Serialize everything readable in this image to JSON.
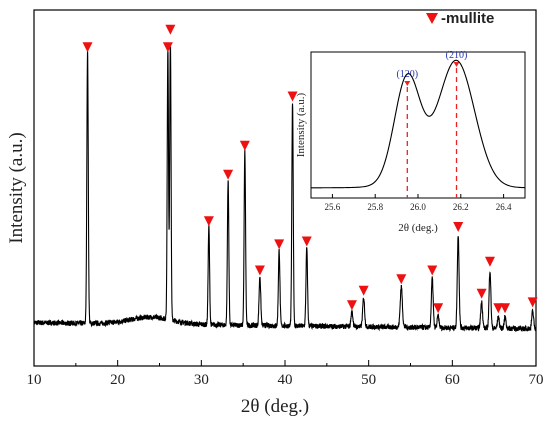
{
  "chart_data": [
    {
      "type": "line",
      "title": "",
      "xlabel": "2θ (deg.)",
      "ylabel": "Intensity (a.u.)",
      "xlim": [
        10,
        70
      ],
      "x_ticks": [
        "10",
        "20",
        "30",
        "40",
        "50",
        "60",
        "70"
      ],
      "y_ticks": [],
      "grid": false,
      "colors": {
        "line": "#000000",
        "marker": "#ee1111"
      },
      "legend": {
        "entries": [
          "-mullite"
        ],
        "placement": "top-right",
        "marker": "red-down-triangle"
      },
      "background": 0.07,
      "peaks": [
        {
          "x": 16.4,
          "y": 0.94,
          "w": 0.12,
          "marked": true
        },
        {
          "x": 26.0,
          "y": 0.94,
          "w": 0.11,
          "marked": true
        },
        {
          "x": 26.3,
          "y": 1.0,
          "w": 0.11,
          "marked": true
        },
        {
          "x": 30.9,
          "y": 0.34,
          "w": 0.12,
          "marked": true
        },
        {
          "x": 33.2,
          "y": 0.5,
          "w": 0.12,
          "marked": true
        },
        {
          "x": 35.2,
          "y": 0.6,
          "w": 0.12,
          "marked": true
        },
        {
          "x": 37.0,
          "y": 0.17,
          "w": 0.14,
          "marked": true
        },
        {
          "x": 39.3,
          "y": 0.26,
          "w": 0.13,
          "marked": true
        },
        {
          "x": 40.9,
          "y": 0.77,
          "w": 0.12,
          "marked": true
        },
        {
          "x": 42.6,
          "y": 0.27,
          "w": 0.13,
          "marked": true
        },
        {
          "x": 48.0,
          "y": 0.05,
          "w": 0.16,
          "marked": true
        },
        {
          "x": 49.4,
          "y": 0.1,
          "w": 0.16,
          "marked": true
        },
        {
          "x": 53.9,
          "y": 0.14,
          "w": 0.18,
          "marked": true
        },
        {
          "x": 57.6,
          "y": 0.17,
          "w": 0.15,
          "marked": true
        },
        {
          "x": 58.3,
          "y": 0.04,
          "w": 0.15,
          "marked": true
        },
        {
          "x": 60.7,
          "y": 0.32,
          "w": 0.15,
          "marked": true
        },
        {
          "x": 63.5,
          "y": 0.09,
          "w": 0.16,
          "marked": true
        },
        {
          "x": 64.5,
          "y": 0.2,
          "w": 0.15,
          "marked": true
        },
        {
          "x": 65.5,
          "y": 0.04,
          "w": 0.15,
          "marked": true
        },
        {
          "x": 66.3,
          "y": 0.04,
          "w": 0.15,
          "marked": true
        },
        {
          "x": 69.6,
          "y": 0.06,
          "w": 0.16,
          "marked": true
        }
      ]
    },
    {
      "type": "line",
      "title": "",
      "xlabel": "2θ (deg.)",
      "ylabel": "Intensity (a.u.)",
      "xlim": [
        25.5,
        26.5
      ],
      "x_ticks": [
        "25.6",
        "25.8",
        "26.0",
        "26.2",
        "26.4"
      ],
      "y_ticks": [],
      "grid": false,
      "legend": "none",
      "colors": {
        "line": "#000000",
        "marker_line": "#ee2222",
        "label": "#2233aa"
      },
      "peaks": [
        {
          "label": "(120)",
          "x": 25.95,
          "y": 0.76
        },
        {
          "label": "(210)",
          "x": 26.18,
          "y": 0.89
        }
      ]
    }
  ]
}
